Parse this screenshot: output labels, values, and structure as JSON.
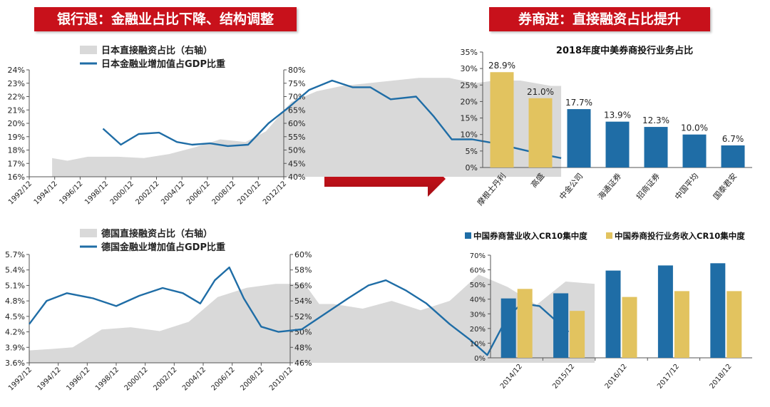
{
  "banners": {
    "left": "银行退：金融业占比下降、结构调整",
    "right": "券商进：直接融资占比提升"
  },
  "colors": {
    "blue": "#1f6da6",
    "gold": "#e2c35f",
    "gray": "#d9d9d9",
    "red": "#c8111b"
  },
  "chart_data": [
    {
      "id": "japan",
      "type": "line",
      "x": [
        "1992/12",
        "1994/12",
        "1996/12",
        "1998/12",
        "2000/12",
        "2002/12",
        "2004/12",
        "2006/12",
        "2008/12",
        "2010/12",
        "2012/12"
      ],
      "y_left_ticks": [
        "24%",
        "23%",
        "22%",
        "21%",
        "20%",
        "19%",
        "18%",
        "17%",
        "16%"
      ],
      "y_right_ticks": [
        "80%",
        "75%",
        "70%",
        "65%",
        "60%",
        "55%",
        "50%",
        "45%",
        "40%"
      ],
      "ylim_left": [
        16,
        24
      ],
      "ylim_right": [
        40,
        80
      ],
      "series": [
        {
          "name": "日本直接融资占比（右轴）",
          "kind": "area",
          "axis": "right",
          "points": [
            [
              1992.9,
              47
            ],
            [
              1993.5,
              46
            ],
            [
              1994.3,
              47.5
            ],
            [
              1995.5,
              47.5
            ],
            [
              1996.5,
              47
            ],
            [
              1997.5,
              48.5
            ],
            [
              1998.5,
              51
            ],
            [
              1999.5,
              54
            ],
            [
              2000.5,
              53
            ],
            [
              2001.3,
              57
            ],
            [
              2002.3,
              68
            ],
            [
              2003.3,
              72
            ],
            [
              2004.3,
              74
            ],
            [
              2005.3,
              75
            ],
            [
              2006.3,
              76
            ],
            [
              2007.3,
              77
            ],
            [
              2008.5,
              77
            ],
            [
              2009.5,
              75
            ],
            [
              2010.3,
              76
            ],
            [
              2011.3,
              76
            ],
            [
              2012.5,
              74
            ],
            [
              2012.9,
              74
            ]
          ]
        },
        {
          "name": "日本金融业增加值占GDP比重",
          "kind": "line",
          "axis": "left",
          "points": [
            [
              1994.9,
              19.6
            ],
            [
              1995.6,
              18.4
            ],
            [
              1996.3,
              19.2
            ],
            [
              1997.1,
              19.3
            ],
            [
              1997.8,
              18.6
            ],
            [
              1998.4,
              18.4
            ],
            [
              1999.1,
              18.5
            ],
            [
              1999.8,
              18.3
            ],
            [
              2000.6,
              18.4
            ],
            [
              2001.4,
              20.0
            ],
            [
              2002.2,
              21.2
            ],
            [
              2003.0,
              22.5
            ],
            [
              2003.9,
              23.2
            ],
            [
              2004.7,
              22.7
            ],
            [
              2005.4,
              22.7
            ],
            [
              2006.2,
              21.8
            ],
            [
              2007.2,
              22.0
            ],
            [
              2007.9,
              20.5
            ],
            [
              2008.6,
              18.8
            ],
            [
              2009.4,
              18.8
            ],
            [
              2010.3,
              18.5
            ],
            [
              2011.2,
              18.1
            ],
            [
              2012.1,
              17.7
            ],
            [
              2012.9,
              17.4
            ]
          ]
        }
      ]
    },
    {
      "id": "germany",
      "type": "line",
      "x": [
        "1992/12",
        "1994/12",
        "1996/12",
        "1998/12",
        "2000/12",
        "2002/12",
        "2004/12",
        "2006/12",
        "2008/12",
        "2010/12"
      ],
      "y_left_ticks": [
        "5.7%",
        "5.4%",
        "5.1%",
        "4.8%",
        "4.5%",
        "4.2%",
        "3.9%",
        "3.6%"
      ],
      "y_right_ticks": [
        "60%",
        "58%",
        "56%",
        "54%",
        "52%",
        "50%",
        "48%",
        "46%"
      ],
      "ylim_left": [
        3.6,
        5.7
      ],
      "ylim_right": [
        46,
        60
      ],
      "series": [
        {
          "name": "德国直接融资占比（右轴）",
          "kind": "area",
          "axis": "right",
          "points": [
            [
              1992.0,
              47.6
            ],
            [
              1992.8,
              47.8
            ],
            [
              1993.5,
              48.0
            ],
            [
              1994.5,
              50.3
            ],
            [
              1995.5,
              50.6
            ],
            [
              1996.5,
              50.1
            ],
            [
              1997.5,
              51.3
            ],
            [
              1998.5,
              54.5
            ],
            [
              1999.5,
              55.7
            ],
            [
              2000.5,
              56.2
            ],
            [
              2001.5,
              56.2
            ],
            [
              2002.0,
              53.6
            ],
            [
              2002.5,
              53.6
            ],
            [
              2003.5,
              53.0
            ],
            [
              2004.5,
              54.0
            ],
            [
              2005.5,
              52.8
            ],
            [
              2006.5,
              54.0
            ],
            [
              2007.5,
              57.4
            ],
            [
              2008.5,
              55.8
            ],
            [
              2009.5,
              53.5
            ],
            [
              2010.5,
              56.5
            ],
            [
              2011.5,
              56.2
            ]
          ]
        },
        {
          "name": "德国金融业增加值占GDP比重",
          "kind": "line",
          "axis": "left",
          "points": [
            [
              1992.0,
              4.35
            ],
            [
              1992.6,
              4.8
            ],
            [
              1993.3,
              4.95
            ],
            [
              1994.2,
              4.85
            ],
            [
              1995.0,
              4.7
            ],
            [
              1995.8,
              4.9
            ],
            [
              1996.6,
              5.05
            ],
            [
              1997.3,
              4.95
            ],
            [
              1997.9,
              4.75
            ],
            [
              1998.4,
              5.2
            ],
            [
              1998.9,
              5.45
            ],
            [
              1999.4,
              4.85
            ],
            [
              2000.0,
              4.3
            ],
            [
              2000.6,
              4.2
            ],
            [
              2001.4,
              4.25
            ],
            [
              2002.2,
              4.55
            ],
            [
              2003.0,
              4.85
            ],
            [
              2003.7,
              5.1
            ],
            [
              2004.3,
              5.2
            ],
            [
              2005.0,
              5.0
            ],
            [
              2005.7,
              4.75
            ],
            [
              2006.5,
              4.35
            ],
            [
              2007.2,
              4.05
            ],
            [
              2007.8,
              3.75
            ],
            [
              2008.5,
              4.5
            ],
            [
              2009.0,
              4.75
            ],
            [
              2009.6,
              4.7
            ],
            [
              2010.2,
              4.4
            ],
            [
              2010.6,
              4.2
            ]
          ]
        }
      ]
    },
    {
      "id": "business-share",
      "type": "bar",
      "title": "2018年度中美券商投行业务占比",
      "categories": [
        "摩根士丹利",
        "高盛",
        "中金公司",
        "海通证券",
        "招商证券",
        "中国平均",
        "国泰君安"
      ],
      "values": [
        28.9,
        21.0,
        17.7,
        13.9,
        12.3,
        10.0,
        6.7
      ],
      "value_labels": [
        "28.9%",
        "21.0%",
        "17.7%",
        "13.9%",
        "12.3%",
        "10.0%",
        "6.7%"
      ],
      "bar_colors": [
        "gold",
        "gold",
        "blue",
        "blue",
        "blue",
        "blue",
        "blue"
      ],
      "y_ticks": [
        "35%",
        "30%",
        "25%",
        "20%",
        "15%",
        "10%",
        "5%",
        "0%"
      ],
      "ylim": [
        0,
        35
      ]
    },
    {
      "id": "cr10",
      "type": "bar",
      "categories": [
        "2014/12",
        "2015/12",
        "2016/12",
        "2017/12",
        "2018/12"
      ],
      "y_ticks": [
        "70%",
        "60%",
        "50%",
        "40%",
        "30%",
        "20%",
        "10%",
        "0%"
      ],
      "ylim": [
        0,
        70
      ],
      "legend_position": "top",
      "series": [
        {
          "name": "中国券商营业收入CR10集中度",
          "color": "blue",
          "values": [
            40.5,
            44,
            59.5,
            63,
            64.5
          ]
        },
        {
          "name": "中国券商投行业务收入CR10集中度",
          "color": "gold",
          "values": [
            47,
            32,
            41.5,
            45.5,
            45.5
          ]
        }
      ]
    }
  ]
}
